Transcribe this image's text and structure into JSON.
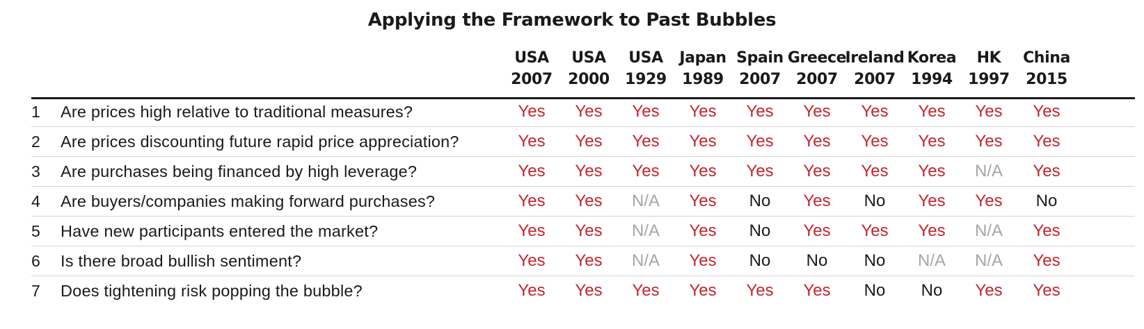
{
  "chart_data": {
    "type": "table",
    "title": "Applying the Framework to Past Bubbles",
    "columns": [
      {
        "name": "USA",
        "year": "2007"
      },
      {
        "name": "USA",
        "year": "2000"
      },
      {
        "name": "USA",
        "year": "1929"
      },
      {
        "name": "Japan",
        "year": "1989"
      },
      {
        "name": "Spain",
        "year": "2007"
      },
      {
        "name": "Greece",
        "year": "2007"
      },
      {
        "name": "Ireland",
        "year": "2007"
      },
      {
        "name": "Korea",
        "year": "1994"
      },
      {
        "name": "HK",
        "year": "1997"
      },
      {
        "name": "China",
        "year": "2015"
      }
    ],
    "rows": [
      {
        "num": "1",
        "question": "Are prices high relative to traditional measures?",
        "values": [
          "Yes",
          "Yes",
          "Yes",
          "Yes",
          "Yes",
          "Yes",
          "Yes",
          "Yes",
          "Yes",
          "Yes"
        ]
      },
      {
        "num": "2",
        "question": "Are prices discounting future rapid price appreciation?",
        "values": [
          "Yes",
          "Yes",
          "Yes",
          "Yes",
          "Yes",
          "Yes",
          "Yes",
          "Yes",
          "Yes",
          "Yes"
        ]
      },
      {
        "num": "3",
        "question": "Are purchases being financed by high leverage?",
        "values": [
          "Yes",
          "Yes",
          "Yes",
          "Yes",
          "Yes",
          "Yes",
          "Yes",
          "Yes",
          "N/A",
          "Yes"
        ]
      },
      {
        "num": "4",
        "question": "Are buyers/companies making forward purchases?",
        "values": [
          "Yes",
          "Yes",
          "N/A",
          "Yes",
          "No",
          "Yes",
          "No",
          "Yes",
          "Yes",
          "No"
        ]
      },
      {
        "num": "5",
        "question": "Have new participants entered the market?",
        "values": [
          "Yes",
          "Yes",
          "N/A",
          "Yes",
          "No",
          "Yes",
          "Yes",
          "Yes",
          "N/A",
          "Yes"
        ]
      },
      {
        "num": "6",
        "question": "Is there broad bullish sentiment?",
        "values": [
          "Yes",
          "Yes",
          "N/A",
          "Yes",
          "No",
          "No",
          "No",
          "N/A",
          "N/A",
          "Yes"
        ]
      },
      {
        "num": "7",
        "question": "Does tightening risk popping the bubble?",
        "values": [
          "Yes",
          "Yes",
          "Yes",
          "Yes",
          "Yes",
          "Yes",
          "No",
          "No",
          "Yes",
          "Yes"
        ]
      }
    ],
    "colors": {
      "yes": "#c4262e",
      "no": "#1a1a1a",
      "na": "#a6a6a6",
      "text": "#1a1a1a",
      "rule": "#1a1a1a",
      "row_separator": "#d4d4d4"
    }
  }
}
